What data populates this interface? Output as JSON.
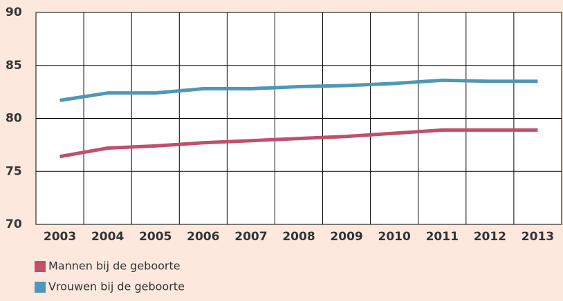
{
  "chart_data": {
    "type": "line",
    "categories": [
      "2003",
      "2004",
      "2005",
      "2006",
      "2007",
      "2008",
      "2009",
      "2010",
      "2011",
      "2012",
      "2013"
    ],
    "series": [
      {
        "name": "Mannen bij de geboorte",
        "color": "#c0506a",
        "values": [
          76.4,
          77.2,
          77.4,
          77.7,
          77.9,
          78.1,
          78.3,
          78.6,
          78.9,
          78.9,
          78.9
        ]
      },
      {
        "name": "Vrouwen bij de geboorte",
        "color": "#4f97b8",
        "values": [
          81.7,
          82.4,
          82.4,
          82.8,
          82.8,
          83.0,
          83.1,
          83.3,
          83.6,
          83.5,
          83.5
        ]
      }
    ],
    "ylim": [
      70,
      90
    ],
    "yticks": [
      70,
      75,
      80,
      85,
      90
    ],
    "grid": true
  }
}
